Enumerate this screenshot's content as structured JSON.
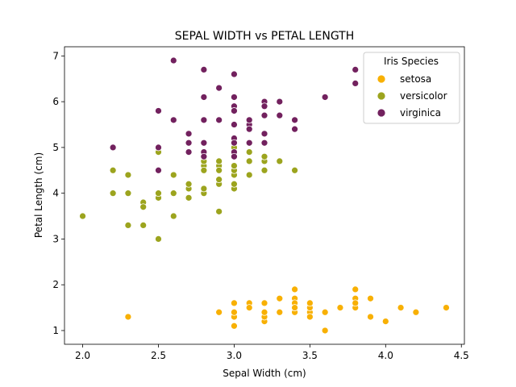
{
  "chart_data": {
    "type": "scatter",
    "title": "SEPAL WIDTH vs PETAL LENGTH",
    "xlabel": "Sepal Width (cm)",
    "ylabel": "Petal Length (cm)",
    "xlim": [
      1.88,
      4.52
    ],
    "ylim": [
      0.7,
      7.2
    ],
    "xticks": [
      2.0,
      2.5,
      3.0,
      3.5,
      4.0,
      4.5
    ],
    "xtick_labels": [
      "2.0",
      "2.5",
      "3.0",
      "3.5",
      "4.0",
      "4.5"
    ],
    "yticks": [
      1,
      2,
      3,
      4,
      5,
      6,
      7
    ],
    "ytick_labels": [
      "1",
      "2",
      "3",
      "4",
      "5",
      "6",
      "7"
    ],
    "grid": false,
    "legend": {
      "title": "Iris Species",
      "position": "top-right"
    },
    "series": [
      {
        "name": "setosa",
        "color": "#f8b003",
        "points": [
          [
            3.5,
            1.4
          ],
          [
            3.0,
            1.4
          ],
          [
            3.2,
            1.3
          ],
          [
            3.1,
            1.5
          ],
          [
            3.6,
            1.4
          ],
          [
            3.9,
            1.7
          ],
          [
            3.4,
            1.4
          ],
          [
            3.4,
            1.5
          ],
          [
            2.9,
            1.4
          ],
          [
            3.1,
            1.5
          ],
          [
            3.7,
            1.5
          ],
          [
            3.4,
            1.6
          ],
          [
            3.0,
            1.4
          ],
          [
            3.0,
            1.1
          ],
          [
            4.0,
            1.2
          ],
          [
            4.4,
            1.5
          ],
          [
            3.9,
            1.3
          ],
          [
            3.5,
            1.4
          ],
          [
            3.8,
            1.7
          ],
          [
            3.8,
            1.5
          ],
          [
            3.4,
            1.7
          ],
          [
            3.7,
            1.5
          ],
          [
            3.6,
            1.0
          ],
          [
            3.3,
            1.7
          ],
          [
            3.4,
            1.9
          ],
          [
            3.0,
            1.6
          ],
          [
            3.4,
            1.6
          ],
          [
            3.5,
            1.5
          ],
          [
            3.4,
            1.4
          ],
          [
            3.2,
            1.6
          ],
          [
            3.1,
            1.6
          ],
          [
            3.4,
            1.5
          ],
          [
            4.1,
            1.5
          ],
          [
            4.2,
            1.4
          ],
          [
            3.1,
            1.5
          ],
          [
            3.2,
            1.2
          ],
          [
            3.5,
            1.3
          ],
          [
            3.6,
            1.4
          ],
          [
            3.0,
            1.3
          ],
          [
            3.4,
            1.5
          ],
          [
            3.5,
            1.3
          ],
          [
            2.3,
            1.3
          ],
          [
            3.2,
            1.3
          ],
          [
            3.5,
            1.6
          ],
          [
            3.8,
            1.9
          ],
          [
            3.0,
            1.4
          ],
          [
            3.8,
            1.6
          ],
          [
            3.2,
            1.4
          ],
          [
            3.7,
            1.5
          ],
          [
            3.3,
            1.4
          ]
        ]
      },
      {
        "name": "versicolor",
        "color": "#9ca41e",
        "points": [
          [
            3.2,
            4.7
          ],
          [
            3.2,
            4.5
          ],
          [
            3.1,
            4.9
          ],
          [
            2.3,
            4.0
          ],
          [
            2.8,
            4.6
          ],
          [
            2.8,
            4.5
          ],
          [
            3.3,
            4.7
          ],
          [
            2.4,
            3.3
          ],
          [
            2.9,
            4.6
          ],
          [
            2.7,
            3.9
          ],
          [
            2.0,
            3.5
          ],
          [
            3.0,
            4.2
          ],
          [
            2.2,
            4.0
          ],
          [
            2.9,
            4.7
          ],
          [
            2.9,
            3.6
          ],
          [
            3.1,
            4.4
          ],
          [
            3.0,
            4.5
          ],
          [
            2.7,
            4.1
          ],
          [
            2.2,
            4.5
          ],
          [
            2.5,
            3.9
          ],
          [
            3.2,
            4.8
          ],
          [
            2.8,
            4.0
          ],
          [
            2.5,
            4.9
          ],
          [
            2.8,
            4.7
          ],
          [
            2.9,
            4.3
          ],
          [
            3.0,
            4.4
          ],
          [
            2.8,
            4.8
          ],
          [
            3.0,
            5.0
          ],
          [
            2.9,
            4.5
          ],
          [
            2.6,
            3.5
          ],
          [
            2.4,
            3.8
          ],
          [
            2.4,
            3.7
          ],
          [
            2.7,
            3.9
          ],
          [
            2.7,
            5.1
          ],
          [
            3.0,
            4.5
          ],
          [
            3.4,
            4.5
          ],
          [
            3.1,
            4.7
          ],
          [
            2.3,
            4.4
          ],
          [
            3.0,
            4.1
          ],
          [
            2.5,
            4.0
          ],
          [
            2.6,
            4.4
          ],
          [
            3.0,
            4.6
          ],
          [
            2.6,
            4.0
          ],
          [
            2.3,
            3.3
          ],
          [
            2.7,
            4.2
          ],
          [
            3.0,
            4.2
          ],
          [
            2.9,
            4.2
          ],
          [
            2.9,
            4.3
          ],
          [
            2.5,
            3.0
          ],
          [
            2.8,
            4.1
          ]
        ]
      },
      {
        "name": "virginica",
        "color": "#72215e",
        "points": [
          [
            3.3,
            6.0
          ],
          [
            2.7,
            5.1
          ],
          [
            3.0,
            5.9
          ],
          [
            2.9,
            5.6
          ],
          [
            3.0,
            5.8
          ],
          [
            3.0,
            6.6
          ],
          [
            2.5,
            4.5
          ],
          [
            2.9,
            6.3
          ],
          [
            2.5,
            5.8
          ],
          [
            3.6,
            6.1
          ],
          [
            3.2,
            5.1
          ],
          [
            2.7,
            5.3
          ],
          [
            3.0,
            5.5
          ],
          [
            2.5,
            5.0
          ],
          [
            2.8,
            5.1
          ],
          [
            3.2,
            5.3
          ],
          [
            3.0,
            5.5
          ],
          [
            3.8,
            6.7
          ],
          [
            2.6,
            6.9
          ],
          [
            2.2,
            5.0
          ],
          [
            3.2,
            5.7
          ],
          [
            2.8,
            4.9
          ],
          [
            2.8,
            6.7
          ],
          [
            2.7,
            4.9
          ],
          [
            3.3,
            5.7
          ],
          [
            3.2,
            6.0
          ],
          [
            2.8,
            4.8
          ],
          [
            3.0,
            4.9
          ],
          [
            2.8,
            5.6
          ],
          [
            3.0,
            5.8
          ],
          [
            2.8,
            6.1
          ],
          [
            3.8,
            6.4
          ],
          [
            2.8,
            5.6
          ],
          [
            2.8,
            5.1
          ],
          [
            2.6,
            5.6
          ],
          [
            3.0,
            6.1
          ],
          [
            3.4,
            5.6
          ],
          [
            3.1,
            5.5
          ],
          [
            3.0,
            4.8
          ],
          [
            3.1,
            5.4
          ],
          [
            3.1,
            5.6
          ],
          [
            3.1,
            5.1
          ],
          [
            2.7,
            5.1
          ],
          [
            3.2,
            5.9
          ],
          [
            3.3,
            5.7
          ],
          [
            3.0,
            5.2
          ],
          [
            2.5,
            5.0
          ],
          [
            3.0,
            5.2
          ],
          [
            3.4,
            5.4
          ],
          [
            3.0,
            5.1
          ]
        ]
      }
    ]
  }
}
